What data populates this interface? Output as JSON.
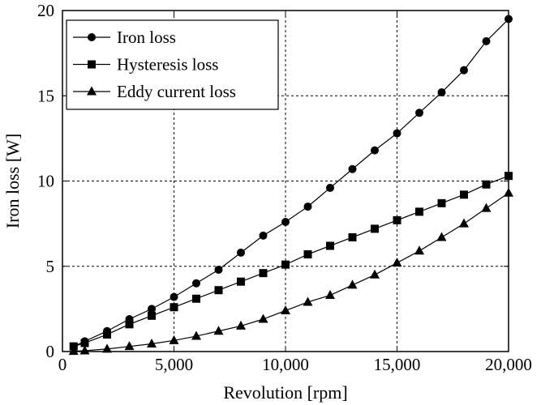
{
  "chart_data": {
    "type": "line",
    "title": "",
    "xlabel": "Revolution [rpm]",
    "ylabel": "Iron loss [W]",
    "xlim": [
      0,
      20000
    ],
    "ylim": [
      0,
      20
    ],
    "x_ticks": [
      0,
      5000,
      10000,
      15000,
      20000
    ],
    "x_tick_labels": [
      "0",
      "5,000",
      "10,000",
      "15,000",
      "20,000"
    ],
    "y_ticks": [
      0,
      5,
      10,
      15,
      20
    ],
    "y_tick_labels": [
      "0",
      "5",
      "10",
      "15",
      "20"
    ],
    "grid": true,
    "legend_position": "top-left",
    "series": [
      {
        "name": "Iron loss",
        "marker": "circle",
        "x": [
          500,
          1000,
          2000,
          3000,
          4000,
          5000,
          6000,
          7000,
          8000,
          9000,
          10000,
          11000,
          12000,
          13000,
          14000,
          15000,
          16000,
          17000,
          18000,
          19000,
          20000
        ],
        "y": [
          0.3,
          0.6,
          1.2,
          1.9,
          2.5,
          3.2,
          4.0,
          4.8,
          5.8,
          6.8,
          7.6,
          8.5,
          9.6,
          10.7,
          11.8,
          12.8,
          14.0,
          15.2,
          16.5,
          18.2,
          19.5
        ]
      },
      {
        "name": "Hysteresis loss",
        "marker": "square",
        "x": [
          500,
          1000,
          2000,
          3000,
          4000,
          5000,
          6000,
          7000,
          8000,
          9000,
          10000,
          11000,
          12000,
          13000,
          14000,
          15000,
          16000,
          17000,
          18000,
          19000,
          20000
        ],
        "y": [
          0.3,
          0.5,
          1.0,
          1.6,
          2.1,
          2.6,
          3.1,
          3.6,
          4.1,
          4.6,
          5.1,
          5.7,
          6.2,
          6.7,
          7.2,
          7.7,
          8.2,
          8.7,
          9.2,
          9.8,
          10.3
        ]
      },
      {
        "name": "Eddy current loss",
        "marker": "triangle",
        "x": [
          500,
          1000,
          2000,
          3000,
          4000,
          5000,
          6000,
          7000,
          8000,
          9000,
          10000,
          11000,
          12000,
          13000,
          14000,
          15000,
          16000,
          17000,
          18000,
          19000,
          20000
        ],
        "y": [
          0.02,
          0.05,
          0.15,
          0.3,
          0.45,
          0.65,
          0.9,
          1.2,
          1.5,
          1.9,
          2.4,
          2.9,
          3.3,
          3.9,
          4.5,
          5.2,
          5.9,
          6.7,
          7.5,
          8.4,
          9.3
        ]
      }
    ]
  }
}
